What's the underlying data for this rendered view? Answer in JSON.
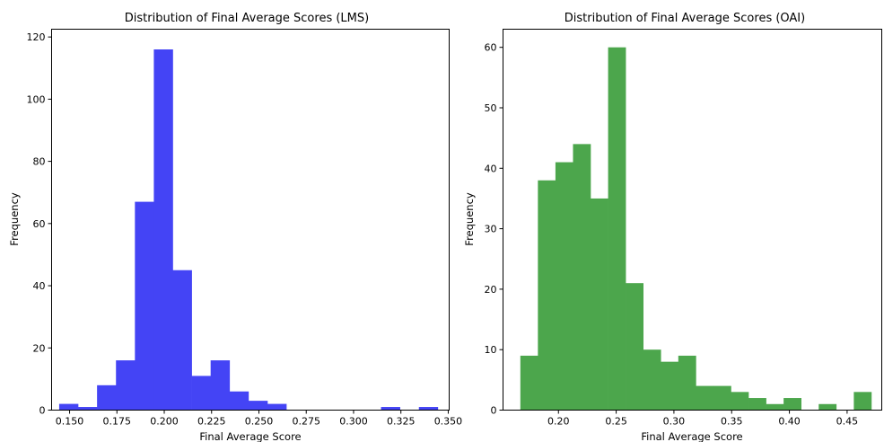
{
  "chart_data": [
    {
      "type": "bar",
      "title": "Distribution of Final Average Scores (LMS)",
      "xlabel": "Final Average Score",
      "ylabel": "Frequency",
      "color": "#4444f5",
      "xlim": [
        0.1405,
        0.3505
      ],
      "ylim": [
        0,
        122.5
      ],
      "xticks": [
        0.15,
        0.175,
        0.2,
        0.225,
        0.25,
        0.275,
        0.3,
        0.325,
        0.35
      ],
      "xtick_labels": [
        "0.150",
        "0.175",
        "0.200",
        "0.225",
        "0.250",
        "0.275",
        "0.300",
        "0.325",
        "0.350"
      ],
      "yticks": [
        0,
        20,
        40,
        60,
        80,
        100,
        120
      ],
      "ytick_labels": [
        "0",
        "20",
        "40",
        "60",
        "80",
        "100",
        "120"
      ],
      "bin_start": 0.1445,
      "bin_width": 0.01,
      "values": [
        2,
        1,
        8,
        16,
        67,
        116,
        45,
        11,
        16,
        6,
        3,
        2,
        0,
        0,
        0,
        0,
        0,
        1,
        0,
        1
      ],
      "grid": false,
      "legend": "none"
    },
    {
      "type": "bar",
      "title": "Distribution of Final Average Scores (OAI)",
      "xlabel": "Final Average Score",
      "ylabel": "Frequency",
      "color": "#4ca64c",
      "xlim": [
        0.152,
        0.48
      ],
      "ylim": [
        0,
        63
      ],
      "xticks": [
        0.2,
        0.25,
        0.3,
        0.35,
        0.4,
        0.45
      ],
      "xtick_labels": [
        "0.20",
        "0.25",
        "0.30",
        "0.35",
        "0.40",
        "0.45"
      ],
      "yticks": [
        0,
        10,
        20,
        30,
        40,
        50,
        60
      ],
      "ytick_labels": [
        "0",
        "10",
        "20",
        "30",
        "40",
        "50",
        "60"
      ],
      "bin_start": 0.167,
      "bin_width": 0.0152,
      "values": [
        9,
        38,
        41,
        44,
        35,
        60,
        21,
        10,
        8,
        9,
        4,
        4,
        3,
        2,
        1,
        2,
        0,
        1,
        0,
        3
      ],
      "grid": false,
      "legend": "none"
    }
  ]
}
